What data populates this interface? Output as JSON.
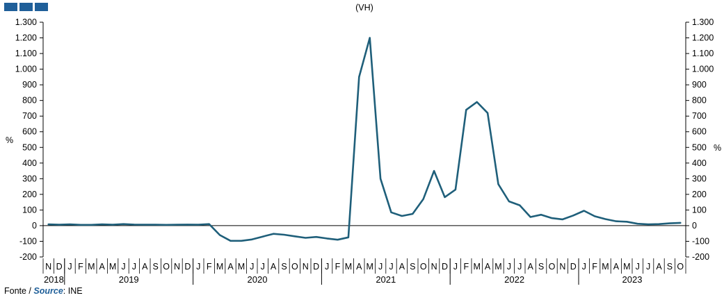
{
  "colors": {
    "line": "#1f5f7a",
    "accent": "#1f5f99"
  },
  "chart_data": {
    "type": "line",
    "title": "(VH)",
    "ylabel_left": "%",
    "ylabel_right": "%",
    "ylim": [
      -200,
      1300
    ],
    "yticks": [
      -200,
      -100,
      0,
      100,
      200,
      300,
      400,
      500,
      600,
      700,
      800,
      900,
      1000,
      1100,
      1200,
      1300
    ],
    "ytick_labels": [
      "-200",
      "-100",
      "0",
      "100",
      "200",
      "300",
      "400",
      "500",
      "600",
      "700",
      "800",
      "900",
      "1.000",
      "1.100",
      "1.200",
      "1.300"
    ],
    "x": [
      "2018-11",
      "2018-12",
      "2019-01",
      "2019-02",
      "2019-03",
      "2019-04",
      "2019-05",
      "2019-06",
      "2019-07",
      "2019-08",
      "2019-09",
      "2019-10",
      "2019-11",
      "2019-12",
      "2020-01",
      "2020-02",
      "2020-03",
      "2020-04",
      "2020-05",
      "2020-06",
      "2020-07",
      "2020-08",
      "2020-09",
      "2020-10",
      "2020-11",
      "2020-12",
      "2021-01",
      "2021-02",
      "2021-03",
      "2021-04",
      "2021-05",
      "2021-06",
      "2021-07",
      "2021-08",
      "2021-09",
      "2021-10",
      "2021-11",
      "2021-12",
      "2022-01",
      "2022-02",
      "2022-03",
      "2022-04",
      "2022-05",
      "2022-06",
      "2022-07",
      "2022-08",
      "2022-09",
      "2022-10",
      "2022-11",
      "2022-12",
      "2023-01",
      "2023-02",
      "2023-03",
      "2023-04",
      "2023-05",
      "2023-06",
      "2023-07",
      "2023-08",
      "2023-09",
      "2023-10"
    ],
    "month_labels": [
      "N",
      "D",
      "J",
      "F",
      "M",
      "A",
      "M",
      "J",
      "J",
      "A",
      "S",
      "O",
      "N",
      "D",
      "J",
      "F",
      "M",
      "A",
      "M",
      "J",
      "J",
      "A",
      "S",
      "O",
      "N",
      "D",
      "J",
      "F",
      "M",
      "A",
      "M",
      "J",
      "J",
      "A",
      "S",
      "O",
      "N",
      "D",
      "J",
      "F",
      "M",
      "A",
      "M",
      "J",
      "J",
      "A",
      "S",
      "O",
      "N",
      "D",
      "J",
      "F",
      "M",
      "A",
      "M",
      "J",
      "J",
      "A",
      "S",
      "O"
    ],
    "years": [
      {
        "label": "2018",
        "start": 0,
        "count": 2
      },
      {
        "label": "2019",
        "start": 2,
        "count": 12
      },
      {
        "label": "2020",
        "start": 14,
        "count": 12
      },
      {
        "label": "2021",
        "start": 26,
        "count": 12
      },
      {
        "label": "2022",
        "start": 38,
        "count": 12
      },
      {
        "label": "2023",
        "start": 50,
        "count": 10
      }
    ],
    "series": [
      {
        "values": [
          8,
          6,
          8,
          5,
          5,
          8,
          6,
          10,
          7,
          6,
          6,
          5,
          6,
          7,
          6,
          10,
          -60,
          -97,
          -97,
          -88,
          -70,
          -52,
          -58,
          -68,
          -78,
          -72,
          -82,
          -90,
          -75,
          950,
          1200,
          300,
          85,
          62,
          75,
          170,
          350,
          182,
          230,
          740,
          790,
          720,
          265,
          155,
          130,
          55,
          70,
          48,
          40,
          65,
          95,
          60,
          42,
          28,
          25,
          12,
          8,
          10,
          15,
          18
        ]
      }
    ],
    "grid": false
  },
  "source": {
    "label_pt": "Fonte / ",
    "label_en": "Source",
    "value": ": INE"
  }
}
